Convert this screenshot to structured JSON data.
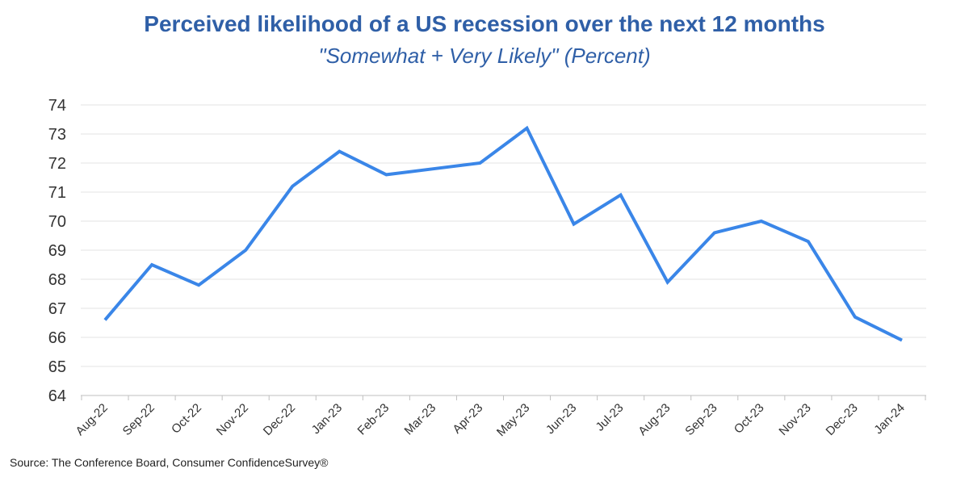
{
  "chart_data": {
    "type": "line",
    "title": "Perceived likelihood of a US recession over the next 12 months",
    "subtitle": "\"Somewhat + Very Likely\" (Percent)",
    "xlabel": "",
    "ylabel": "",
    "ylim": [
      64,
      74
    ],
    "yticks": [
      "64",
      "65",
      "66",
      "67",
      "68",
      "69",
      "70",
      "71",
      "72",
      "73",
      "74"
    ],
    "grid": true,
    "categories": [
      "Aug-22",
      "Sep-22",
      "Oct-22",
      "Nov-22",
      "Dec-22",
      "Jan-23",
      "Feb-23",
      "Mar-23",
      "Apr-23",
      "May-23",
      "Jun-23",
      "Jul-23",
      "Aug-23",
      "Sep-23",
      "Oct-23",
      "Nov-23",
      "Dec-23",
      "Jan-24"
    ],
    "series": [
      {
        "values": [
          66.6,
          68.5,
          67.8,
          69.0,
          71.2,
          72.4,
          71.6,
          71.8,
          72.0,
          73.2,
          69.9,
          70.9,
          67.9,
          69.6,
          70.0,
          69.3,
          66.7,
          65.9
        ],
        "color": "#3a86e8"
      }
    ]
  },
  "source": "Source: The Conference Board, Consumer ConfidenceSurvey®"
}
